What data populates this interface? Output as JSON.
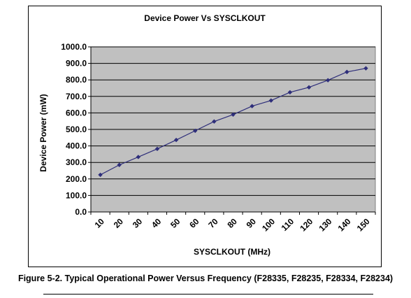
{
  "chart_data": {
    "type": "line",
    "title": "Device Power Vs SYSCLKOUT",
    "xlabel": "SYSCLKOUT (MHz)",
    "ylabel": "Device Power (mW)",
    "categories": [
      "10",
      "20",
      "30",
      "40",
      "50",
      "60",
      "70",
      "80",
      "90",
      "100",
      "110",
      "120",
      "130",
      "140",
      "150"
    ],
    "series": [
      {
        "values": [
          225,
          285,
          333,
          382,
          436,
          492,
          548,
          590,
          641,
          675,
          725,
          755,
          798,
          848,
          870
        ]
      }
    ],
    "ylim": [
      0,
      1000
    ],
    "y_ticks": [
      "0.0",
      "100.0",
      "200.0",
      "300.0",
      "400.0",
      "500.0",
      "600.0",
      "700.0",
      "800.0",
      "900.0",
      "1000.0"
    ],
    "grid": true,
    "legend": "none",
    "colors": {
      "line": "#2e2e7a",
      "marker": "#2e2e7a",
      "plot_bg": "#c0c0c0",
      "grid": "#000000"
    }
  },
  "caption": "Figure 5-2. Typical Operational Power Versus Frequency (F28335, F28235, F28334, F28234)"
}
